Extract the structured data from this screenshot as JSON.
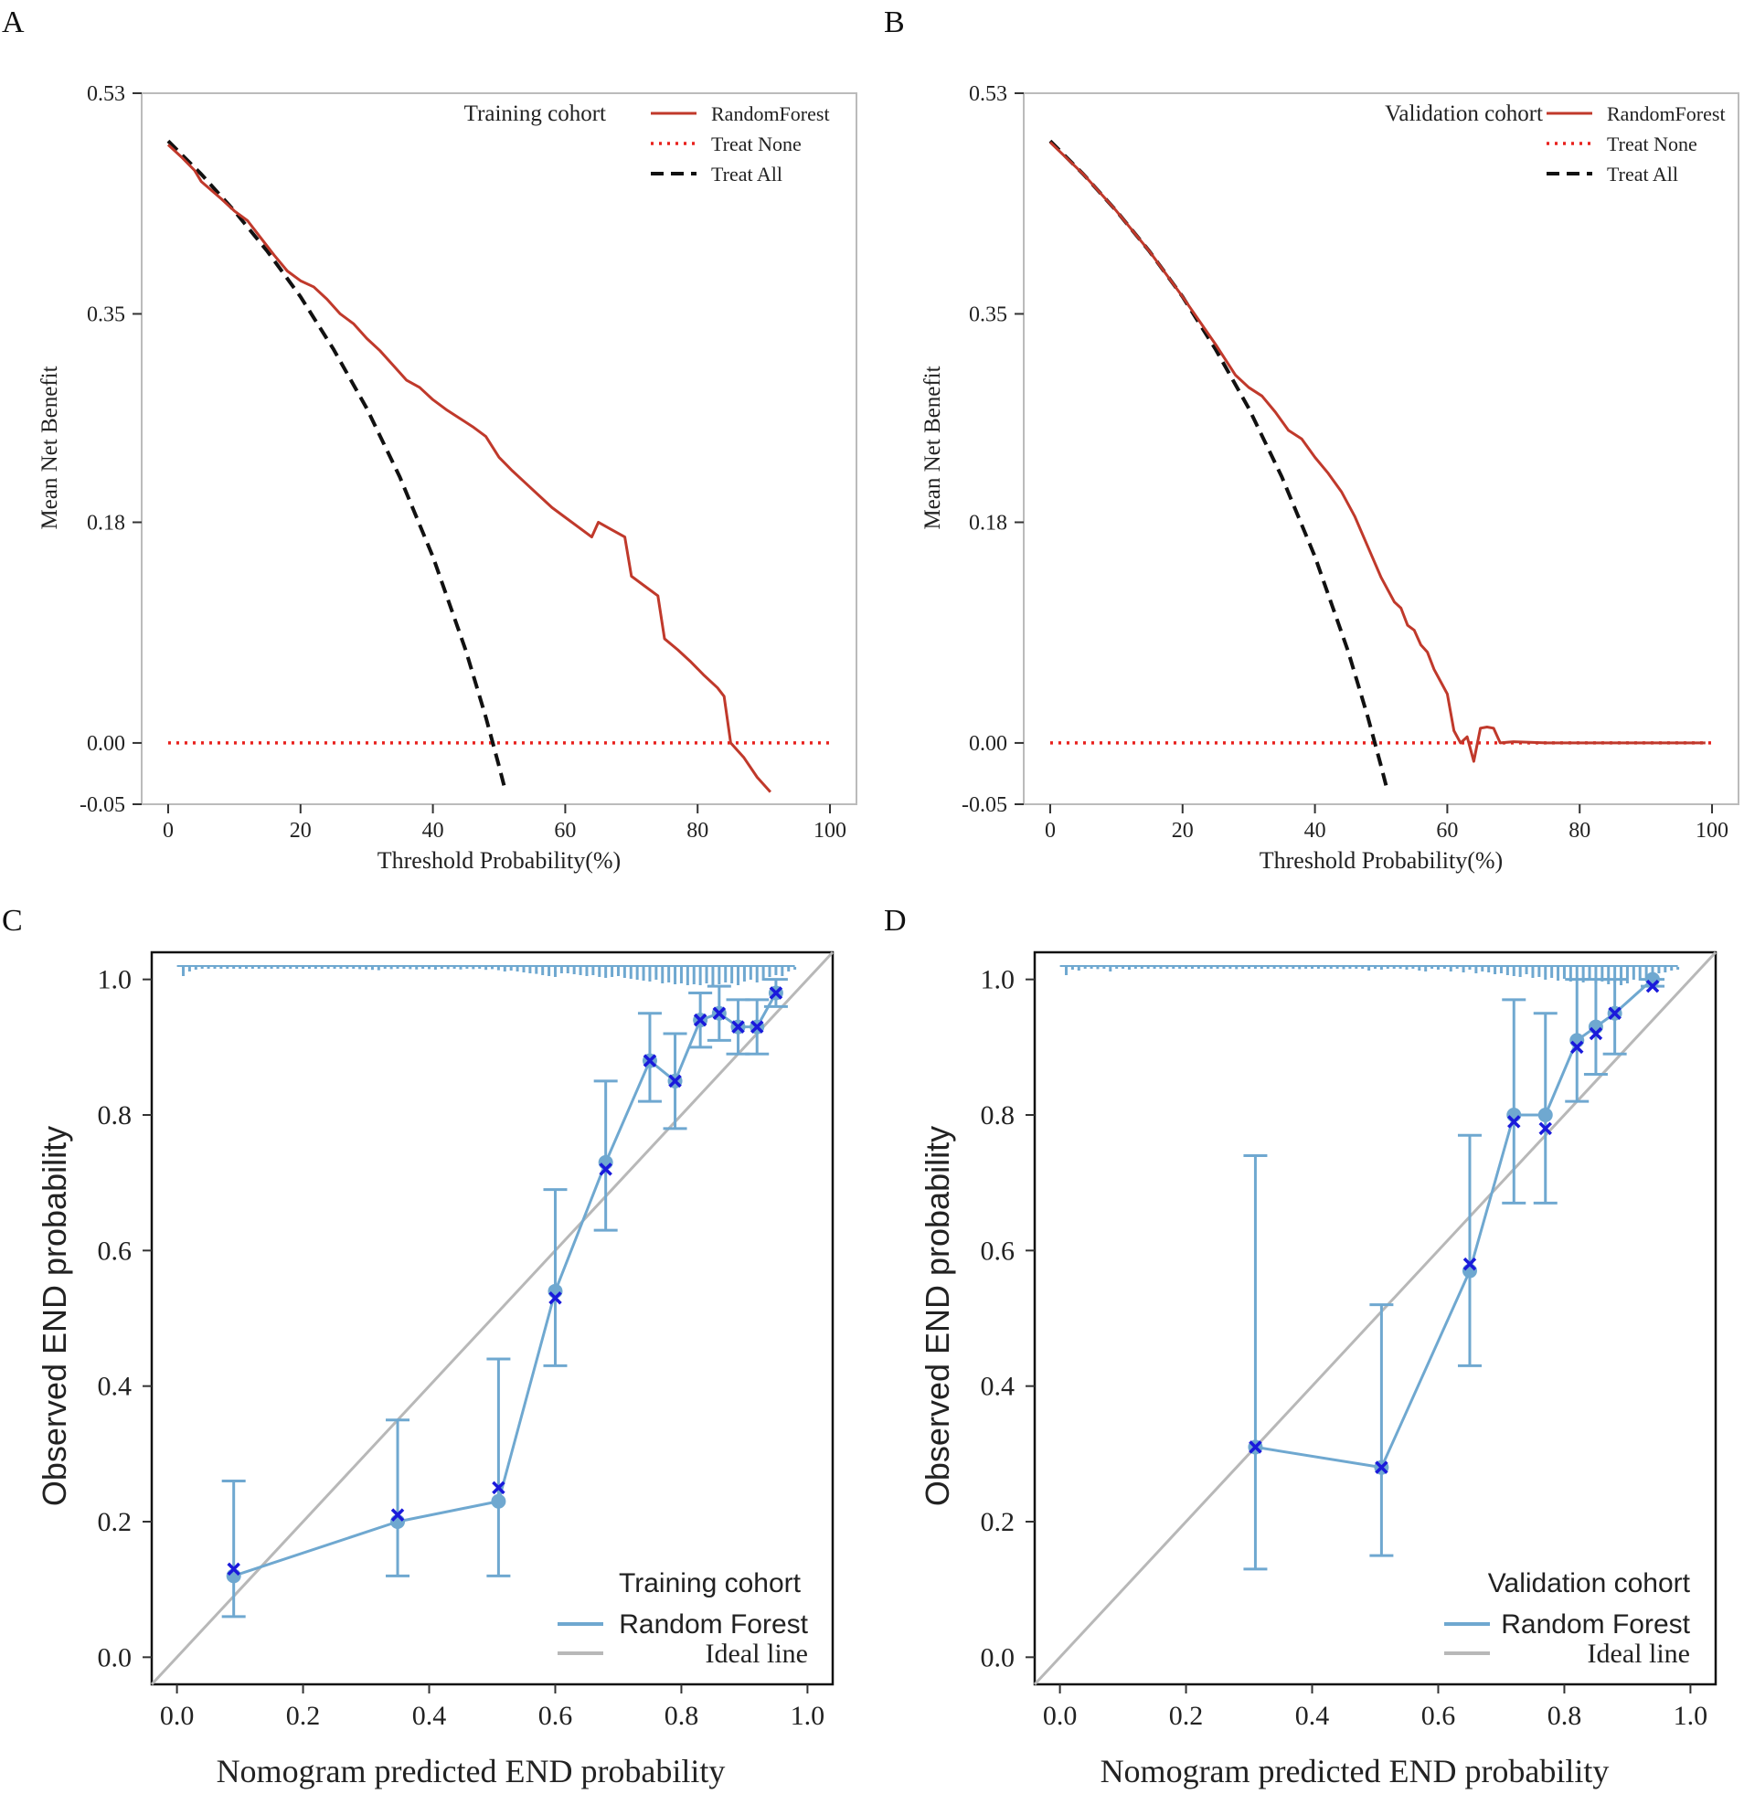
{
  "colors": {
    "random_forest_dca": "#c0392b",
    "treat_none": "#e8201c",
    "treat_all": "#111111",
    "calibration_line": "#6fa8d0",
    "calibration_marker": "#1a1adb",
    "ideal_line": "#b8b8b8",
    "dca_frame": "#bbbbbb",
    "cal_frame": "#111111"
  },
  "chart_data": [
    {
      "panel_label": "A",
      "type": "line",
      "xlabel": "Threshold Probability(%)",
      "ylabel": "Mean Net Benefit",
      "xlim": [
        -4,
        104
      ],
      "ylim": [
        -0.05,
        0.53
      ],
      "xticks": [
        0,
        20,
        40,
        60,
        80,
        100
      ],
      "xtick_labels": [
        "0",
        "20",
        "40",
        "60",
        "80",
        "100"
      ],
      "yticks": [
        -0.05,
        0.0,
        0.18,
        0.35,
        0.53
      ],
      "ytick_labels": [
        "-0.05",
        "0.00",
        "0.18",
        "0.35",
        "0.53"
      ],
      "legend": {
        "title": "Training cohort",
        "placement": "top-right",
        "entries": [
          "RandomForest",
          "Treat None",
          "Treat All"
        ]
      },
      "series": [
        {
          "name": "RandomForest",
          "style": "solid",
          "x": [
            0,
            2,
            4,
            5,
            8,
            10,
            12,
            14,
            16,
            18,
            20,
            22,
            24,
            26,
            28,
            30,
            32,
            34,
            36,
            38,
            40,
            42,
            44,
            46,
            48,
            50,
            52,
            54,
            56,
            58,
            60,
            62,
            64,
            65,
            67,
            69,
            70,
            72,
            74,
            75,
            77,
            79,
            81,
            83,
            84,
            85,
            87,
            89,
            91
          ],
          "y": [
            0.488,
            0.478,
            0.467,
            0.458,
            0.444,
            0.434,
            0.426,
            0.412,
            0.398,
            0.385,
            0.377,
            0.372,
            0.362,
            0.35,
            0.342,
            0.33,
            0.32,
            0.308,
            0.296,
            0.29,
            0.28,
            0.272,
            0.265,
            0.258,
            0.25,
            0.233,
            0.222,
            0.212,
            0.202,
            0.192,
            0.184,
            0.176,
            0.168,
            0.18,
            0.174,
            0.168,
            0.136,
            0.128,
            0.12,
            0.085,
            0.076,
            0.066,
            0.055,
            0.045,
            0.038,
            0.0,
            -0.012,
            -0.028,
            -0.04
          ]
        },
        {
          "name": "Treat None",
          "style": "dotted",
          "x": [
            0,
            100
          ],
          "y": [
            0,
            0
          ]
        },
        {
          "name": "Treat All",
          "style": "dashed",
          "x": [
            0,
            5,
            10,
            15,
            20,
            25,
            30,
            35,
            40,
            45,
            48,
            50,
            51
          ],
          "y": [
            0.491,
            0.464,
            0.434,
            0.401,
            0.364,
            0.321,
            0.273,
            0.217,
            0.152,
            0.075,
            0.021,
            -0.019,
            -0.04
          ]
        }
      ]
    },
    {
      "panel_label": "B",
      "type": "line",
      "xlabel": "Threshold Probability(%)",
      "ylabel": "Mean Net Benefit",
      "xlim": [
        -4,
        104
      ],
      "ylim": [
        -0.05,
        0.53
      ],
      "xticks": [
        0,
        20,
        40,
        60,
        80,
        100
      ],
      "xtick_labels": [
        "0",
        "20",
        "40",
        "60",
        "80",
        "100"
      ],
      "yticks": [
        -0.05,
        0.0,
        0.18,
        0.35,
        0.53
      ],
      "ytick_labels": [
        "-0.05",
        "0.00",
        "0.18",
        "0.35",
        "0.53"
      ],
      "legend": {
        "title": "Validation cohort",
        "placement": "top-right",
        "entries": [
          "RandomForest",
          "Treat None",
          "Treat All"
        ]
      },
      "series": [
        {
          "name": "RandomForest",
          "style": "solid",
          "x": [
            0,
            5,
            10,
            15,
            20,
            25,
            28,
            30,
            32,
            34,
            36,
            38,
            40,
            42,
            44,
            46,
            48,
            50,
            52,
            53,
            54,
            55,
            56,
            57,
            58,
            59,
            60,
            61,
            62,
            63,
            64,
            65,
            66,
            67,
            68,
            70,
            75,
            80,
            90,
            99
          ],
          "y": [
            0.49,
            0.464,
            0.434,
            0.401,
            0.364,
            0.325,
            0.3,
            0.29,
            0.283,
            0.27,
            0.255,
            0.248,
            0.233,
            0.22,
            0.205,
            0.185,
            0.16,
            0.135,
            0.115,
            0.11,
            0.096,
            0.092,
            0.08,
            0.074,
            0.06,
            0.05,
            0.04,
            0.01,
            0.0,
            0.005,
            -0.015,
            0.012,
            0.013,
            0.012,
            0.0,
            0.001,
            0.0,
            0.0,
            0.0,
            0.0
          ]
        },
        {
          "name": "Treat None",
          "style": "dotted",
          "x": [
            0,
            100
          ],
          "y": [
            0,
            0
          ]
        },
        {
          "name": "Treat All",
          "style": "dashed",
          "x": [
            0,
            5,
            10,
            15,
            20,
            25,
            30,
            35,
            40,
            45,
            48,
            50,
            51
          ],
          "y": [
            0.491,
            0.464,
            0.434,
            0.401,
            0.364,
            0.321,
            0.273,
            0.217,
            0.152,
            0.075,
            0.021,
            -0.019,
            -0.04
          ]
        }
      ]
    },
    {
      "panel_label": "C",
      "type": "scatter",
      "xlabel": "Nomogram predicted END probability",
      "ylabel": "Observed END probability",
      "xlim": [
        -0.04,
        1.04
      ],
      "ylim": [
        -0.04,
        1.04
      ],
      "xticks": [
        0.0,
        0.2,
        0.4,
        0.6,
        0.8,
        1.0
      ],
      "xtick_labels": [
        "0.0",
        "0.2",
        "0.4",
        "0.6",
        "0.8",
        "1.0"
      ],
      "yticks": [
        0.0,
        0.2,
        0.4,
        0.6,
        0.8,
        1.0
      ],
      "ytick_labels": [
        "0.0",
        "0.2",
        "0.4",
        "0.6",
        "0.8",
        "1.0"
      ],
      "legend": {
        "title": "Training cohort",
        "placement": "bottom-right",
        "entries": [
          "Random Forest",
          "Ideal line"
        ]
      },
      "series": [
        {
          "name": "Random Forest",
          "x": [
            0.09,
            0.35,
            0.51,
            0.6,
            0.68,
            0.75,
            0.79,
            0.83,
            0.86,
            0.89,
            0.92,
            0.95
          ],
          "y": [
            0.12,
            0.2,
            0.23,
            0.54,
            0.73,
            0.88,
            0.85,
            0.94,
            0.95,
            0.93,
            0.93,
            0.98
          ],
          "y_markers": [
            0.13,
            0.21,
            0.25,
            0.53,
            0.72,
            0.88,
            0.85,
            0.94,
            0.95,
            0.93,
            0.93,
            0.98
          ],
          "ci_lower": [
            0.06,
            0.12,
            0.12,
            0.43,
            0.63,
            0.82,
            0.78,
            0.9,
            0.91,
            0.89,
            0.89,
            0.96
          ],
          "ci_upper": [
            0.26,
            0.35,
            0.44,
            0.69,
            0.85,
            0.95,
            0.92,
            0.98,
            0.99,
            0.97,
            0.97,
            1.0
          ]
        },
        {
          "name": "Ideal line",
          "x": [
            -0.04,
            1.04
          ],
          "y": [
            -0.04,
            1.04
          ]
        }
      ],
      "rug": {
        "x": [
          0.01,
          0.02,
          0.03,
          0.04,
          0.05,
          0.06,
          0.07,
          0.08,
          0.09,
          0.1,
          0.11,
          0.12,
          0.13,
          0.14,
          0.15,
          0.16,
          0.17,
          0.18,
          0.19,
          0.2,
          0.21,
          0.22,
          0.23,
          0.24,
          0.25,
          0.26,
          0.27,
          0.28,
          0.29,
          0.3,
          0.31,
          0.32,
          0.33,
          0.34,
          0.35,
          0.36,
          0.37,
          0.38,
          0.39,
          0.4,
          0.41,
          0.42,
          0.43,
          0.44,
          0.45,
          0.46,
          0.47,
          0.48,
          0.49,
          0.5,
          0.51,
          0.52,
          0.53,
          0.54,
          0.55,
          0.56,
          0.57,
          0.58,
          0.59,
          0.6,
          0.61,
          0.62,
          0.63,
          0.64,
          0.65,
          0.66,
          0.67,
          0.68,
          0.69,
          0.7,
          0.71,
          0.72,
          0.73,
          0.74,
          0.75,
          0.76,
          0.77,
          0.78,
          0.79,
          0.8,
          0.81,
          0.82,
          0.83,
          0.84,
          0.85,
          0.86,
          0.87,
          0.88,
          0.89,
          0.9,
          0.91,
          0.92,
          0.93,
          0.94,
          0.95,
          0.96,
          0.97,
          0.98
        ],
        "h": [
          0.5,
          0.25,
          0.15,
          0.1,
          0.1,
          0.1,
          0.1,
          0.1,
          0.1,
          0.1,
          0.1,
          0.1,
          0.1,
          0.1,
          0.1,
          0.1,
          0.1,
          0.1,
          0.1,
          0.1,
          0.1,
          0.1,
          0.1,
          0.1,
          0.1,
          0.1,
          0.1,
          0.1,
          0.12,
          0.14,
          0.16,
          0.18,
          0.1,
          0.12,
          0.1,
          0.1,
          0.12,
          0.14,
          0.1,
          0.12,
          0.15,
          0.1,
          0.12,
          0.1,
          0.14,
          0.1,
          0.12,
          0.1,
          0.16,
          0.12,
          0.18,
          0.25,
          0.2,
          0.25,
          0.3,
          0.35,
          0.38,
          0.45,
          0.5,
          0.55,
          0.35,
          0.35,
          0.4,
          0.45,
          0.5,
          0.45,
          0.55,
          0.6,
          0.55,
          0.5,
          0.6,
          0.65,
          0.7,
          0.75,
          0.8,
          0.7,
          0.9,
          0.85,
          0.95,
          0.9,
          1.0,
          0.95,
          1.0,
          0.9,
          1.0,
          0.95,
          0.85,
          0.9,
          1.0,
          0.8,
          0.7,
          0.85,
          0.75,
          0.55,
          0.45,
          0.5,
          0.25,
          0.15
        ]
      }
    },
    {
      "panel_label": "D",
      "type": "scatter",
      "xlabel": "Nomogram predicted END probability",
      "ylabel": "Observed END probability",
      "xlim": [
        -0.04,
        1.04
      ],
      "ylim": [
        -0.04,
        1.04
      ],
      "xticks": [
        0.0,
        0.2,
        0.4,
        0.6,
        0.8,
        1.0
      ],
      "xtick_labels": [
        "0.0",
        "0.2",
        "0.4",
        "0.6",
        "0.8",
        "1.0"
      ],
      "yticks": [
        0.0,
        0.2,
        0.4,
        0.6,
        0.8,
        1.0
      ],
      "ytick_labels": [
        "0.0",
        "0.2",
        "0.4",
        "0.6",
        "0.8",
        "1.0"
      ],
      "legend": {
        "title": "Validation cohort",
        "placement": "bottom-right",
        "entries": [
          "Random Forest",
          "Ideal line"
        ]
      },
      "series": [
        {
          "name": "Random Forest",
          "x": [
            0.31,
            0.51,
            0.65,
            0.72,
            0.77,
            0.82,
            0.85,
            0.88,
            0.94
          ],
          "y": [
            0.31,
            0.28,
            0.57,
            0.8,
            0.8,
            0.91,
            0.93,
            0.95,
            1.0
          ],
          "y_markers": [
            0.31,
            0.28,
            0.58,
            0.79,
            0.78,
            0.9,
            0.92,
            0.95,
            0.99
          ],
          "ci_lower": [
            0.13,
            0.15,
            0.43,
            0.67,
            0.67,
            0.82,
            0.86,
            0.89,
            0.99
          ],
          "ci_upper": [
            0.74,
            0.52,
            0.77,
            0.97,
            0.95,
            1.0,
            1.0,
            1.0,
            1.0
          ]
        },
        {
          "name": "Ideal line",
          "x": [
            -0.04,
            1.04
          ],
          "y": [
            -0.04,
            1.04
          ]
        }
      ],
      "rug": {
        "x": [
          0.01,
          0.02,
          0.03,
          0.04,
          0.05,
          0.06,
          0.07,
          0.08,
          0.09,
          0.1,
          0.11,
          0.12,
          0.13,
          0.14,
          0.15,
          0.16,
          0.17,
          0.18,
          0.19,
          0.2,
          0.21,
          0.22,
          0.23,
          0.24,
          0.25,
          0.26,
          0.27,
          0.28,
          0.29,
          0.3,
          0.31,
          0.32,
          0.33,
          0.34,
          0.35,
          0.36,
          0.37,
          0.38,
          0.39,
          0.4,
          0.41,
          0.42,
          0.43,
          0.44,
          0.45,
          0.46,
          0.47,
          0.48,
          0.49,
          0.5,
          0.51,
          0.52,
          0.53,
          0.54,
          0.55,
          0.56,
          0.57,
          0.58,
          0.59,
          0.6,
          0.61,
          0.62,
          0.63,
          0.64,
          0.65,
          0.66,
          0.67,
          0.68,
          0.69,
          0.7,
          0.71,
          0.72,
          0.73,
          0.74,
          0.75,
          0.76,
          0.77,
          0.78,
          0.79,
          0.8,
          0.81,
          0.82,
          0.83,
          0.84,
          0.85,
          0.86,
          0.87,
          0.88,
          0.89,
          0.9,
          0.91,
          0.92,
          0.93,
          0.94,
          0.95,
          0.96,
          0.97,
          0.98
        ],
        "h": [
          0.45,
          0.15,
          0.2,
          0.1,
          0.1,
          0.12,
          0.1,
          0.25,
          0.1,
          0.1,
          0.15,
          0.1,
          0.1,
          0.1,
          0.1,
          0.1,
          0.1,
          0.1,
          0.1,
          0.1,
          0.1,
          0.1,
          0.1,
          0.1,
          0.1,
          0.1,
          0.1,
          0.12,
          0.1,
          0.1,
          0.1,
          0.1,
          0.1,
          0.1,
          0.1,
          0.1,
          0.1,
          0.12,
          0.1,
          0.1,
          0.1,
          0.1,
          0.1,
          0.1,
          0.12,
          0.1,
          0.1,
          0.1,
          0.2,
          0.1,
          0.15,
          0.1,
          0.1,
          0.1,
          0.15,
          0.1,
          0.2,
          0.25,
          0.1,
          0.15,
          0.1,
          0.25,
          0.1,
          0.3,
          0.15,
          0.35,
          0.25,
          0.3,
          0.4,
          0.35,
          0.45,
          0.5,
          0.55,
          0.4,
          0.6,
          0.55,
          0.7,
          0.6,
          0.75,
          0.65,
          0.8,
          0.7,
          0.85,
          0.75,
          0.9,
          0.8,
          0.95,
          0.85,
          1.0,
          0.9,
          0.7,
          0.75,
          0.6,
          0.5,
          0.35,
          0.3,
          0.2,
          0.15
        ]
      }
    }
  ]
}
